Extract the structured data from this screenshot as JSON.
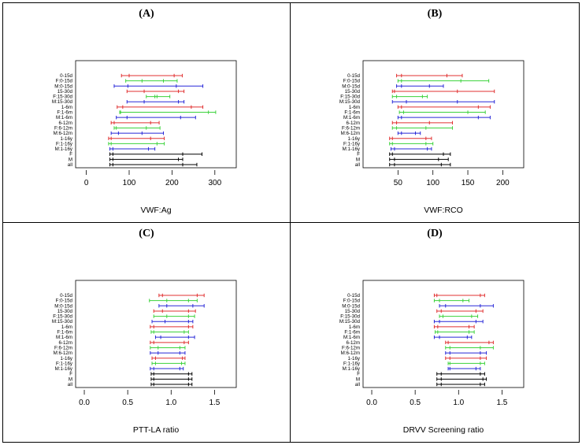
{
  "figure": {
    "panels": [
      {
        "label": "(A)"
      },
      {
        "label": "(B)"
      },
      {
        "label": "(C)"
      },
      {
        "label": "(D)"
      }
    ]
  },
  "chart_data": [
    {
      "type": "interval",
      "panel": "(A)",
      "xlabel": "VWF:Ag",
      "ylabel": "",
      "title": "",
      "xlim": [
        -25,
        350
      ],
      "xticks": [
        0,
        100,
        200,
        300
      ],
      "grid": false,
      "legend": "none",
      "colors": {
        "0-15d": "#e03030",
        "F": "#3cd23c",
        "M": "#2828d8",
        "all": "#000000"
      },
      "rows": [
        {
          "label": "0-15d",
          "group": "0-15d",
          "low": 82,
          "high": 224,
          "ticks": [
            100,
            205
          ]
        },
        {
          "label": "F:0-15d",
          "group": "F",
          "low": 92,
          "high": 212,
          "ticks": [
            130,
            180
          ]
        },
        {
          "label": "M:0-15d",
          "group": "M",
          "low": 65,
          "high": 272,
          "ticks": [
            97,
            210
          ]
        },
        {
          "label": "15-30d",
          "group": "0-15d",
          "low": 95,
          "high": 228,
          "ticks": [
            135,
            215
          ]
        },
        {
          "label": "F:15-30d",
          "group": "F",
          "low": 140,
          "high": 195,
          "ticks": [
            160,
            165
          ]
        },
        {
          "label": "M:15-30d",
          "group": "M",
          "low": 95,
          "high": 228,
          "ticks": [
            135,
            215
          ]
        },
        {
          "label": "1-6m",
          "group": "0-15d",
          "low": 72,
          "high": 272,
          "ticks": [
            85,
            245
          ]
        },
        {
          "label": "F:1-6m",
          "group": "F",
          "low": 78,
          "high": 302,
          "ticks": [
            80,
            285
          ]
        },
        {
          "label": "M:1-6m",
          "group": "M",
          "low": 70,
          "high": 255,
          "ticks": [
            95,
            220
          ]
        },
        {
          "label": "6-12m",
          "group": "0-15d",
          "low": 58,
          "high": 170,
          "ticks": [
            65,
            150
          ]
        },
        {
          "label": "F:6-12m",
          "group": "F",
          "low": 65,
          "high": 172,
          "ticks": [
            70,
            140
          ]
        },
        {
          "label": "M:6-12m",
          "group": "M",
          "low": 58,
          "high": 180,
          "ticks": [
            75,
            130
          ]
        },
        {
          "label": "1-16y",
          "group": "0-15d",
          "low": 52,
          "high": 182,
          "ticks": [
            58,
            150
          ]
        },
        {
          "label": "F:1-16y",
          "group": "F",
          "low": 52,
          "high": 182,
          "ticks": [
            58,
            165
          ]
        },
        {
          "label": "M:1-16y",
          "group": "M",
          "low": 55,
          "high": 160,
          "ticks": [
            62,
            145
          ]
        },
        {
          "label": "F",
          "group": "all",
          "low": 55,
          "high": 270,
          "ticks": [
            62,
            225
          ]
        },
        {
          "label": "M",
          "group": "all",
          "low": 55,
          "high": 225,
          "ticks": [
            62,
            215
          ]
        },
        {
          "label": "all",
          "group": "all",
          "low": 55,
          "high": 258,
          "ticks": [
            62,
            225
          ]
        }
      ]
    },
    {
      "type": "interval",
      "panel": "(B)",
      "xlabel": "VWF:RCO",
      "ylabel": "",
      "title": "",
      "xlim": [
        0,
        230
      ],
      "xticks": [
        50,
        100,
        150,
        200
      ],
      "grid": false,
      "legend": "none",
      "colors": {
        "0-15d": "#e03030",
        "F": "#3cd23c",
        "M": "#2828d8",
        "all": "#000000"
      },
      "rows": [
        {
          "label": "0-15d",
          "group": "0-15d",
          "low": 48,
          "high": 142,
          "ticks": [
            55,
            120
          ]
        },
        {
          "label": "F:0-15d",
          "group": "F",
          "low": 50,
          "high": 180,
          "ticks": [
            55,
            140
          ]
        },
        {
          "label": "M:0-15d",
          "group": "M",
          "low": 48,
          "high": 115,
          "ticks": [
            55,
            95
          ]
        },
        {
          "label": "15-30d",
          "group": "0-15d",
          "low": 42,
          "high": 188,
          "ticks": [
            45,
            135
          ]
        },
        {
          "label": "F:15-30d",
          "group": "F",
          "low": 42,
          "high": 92,
          "ticks": [
            48,
            85
          ]
        },
        {
          "label": "M:15-30d",
          "group": "M",
          "low": 42,
          "high": 188,
          "ticks": [
            62,
            135
          ]
        },
        {
          "label": "1-6m",
          "group": "0-15d",
          "low": 50,
          "high": 182,
          "ticks": [
            55,
            165
          ]
        },
        {
          "label": "F:1-6m",
          "group": "F",
          "low": 52,
          "high": 175,
          "ticks": [
            58,
            150
          ]
        },
        {
          "label": "M:1-6m",
          "group": "M",
          "low": 50,
          "high": 182,
          "ticks": [
            55,
            165
          ]
        },
        {
          "label": "6-12m",
          "group": "0-15d",
          "low": 42,
          "high": 128,
          "ticks": [
            48,
            95
          ]
        },
        {
          "label": "F:6-12m",
          "group": "F",
          "low": 42,
          "high": 128,
          "ticks": [
            48,
            90
          ]
        },
        {
          "label": "M:6-12m",
          "group": "M",
          "low": 50,
          "high": 82,
          "ticks": [
            55,
            75
          ]
        },
        {
          "label": "1-16y",
          "group": "0-15d",
          "low": 38,
          "high": 98,
          "ticks": [
            42,
            90
          ]
        },
        {
          "label": "F:1-16y",
          "group": "F",
          "low": 38,
          "high": 100,
          "ticks": [
            42,
            90
          ]
        },
        {
          "label": "M:1-16y",
          "group": "M",
          "low": 40,
          "high": 98,
          "ticks": [
            45,
            92
          ]
        },
        {
          "label": "F",
          "group": "all",
          "low": 38,
          "high": 125,
          "ticks": [
            42,
            115
          ]
        },
        {
          "label": "M",
          "group": "all",
          "low": 38,
          "high": 122,
          "ticks": [
            45,
            108
          ]
        },
        {
          "label": "all",
          "group": "all",
          "low": 38,
          "high": 125,
          "ticks": [
            45,
            112
          ]
        }
      ]
    },
    {
      "type": "interval",
      "panel": "(C)",
      "xlabel": "PTT-LA ratio",
      "ylabel": "",
      "title": "",
      "xlim": [
        -0.1,
        1.75
      ],
      "xticks": [
        "0.0",
        "0.5",
        "1.0",
        "1.5"
      ],
      "xtick_values": [
        0,
        0.5,
        1,
        1.5
      ],
      "grid": false,
      "legend": "none",
      "colors": {
        "0-15d": "#e03030",
        "F": "#3cd23c",
        "M": "#2828d8",
        "all": "#000000"
      },
      "rows": [
        {
          "label": "0-15d",
          "group": "0-15d",
          "low": 0.86,
          "high": 1.38,
          "ticks": [
            0.9,
            1.3
          ]
        },
        {
          "label": "F:0-15d",
          "group": "F",
          "low": 0.75,
          "high": 1.3,
          "ticks": [
            0.95,
            1.2
          ]
        },
        {
          "label": "M:0-15d",
          "group": "M",
          "low": 0.86,
          "high": 1.38,
          "ticks": [
            0.95,
            1.25
          ]
        },
        {
          "label": "15-30d",
          "group": "0-15d",
          "low": 0.8,
          "high": 1.28,
          "ticks": [
            0.9,
            1.2
          ]
        },
        {
          "label": "F:15-30d",
          "group": "F",
          "low": 0.8,
          "high": 1.27,
          "ticks": [
            0.95,
            1.2
          ]
        },
        {
          "label": "M:15-30d",
          "group": "M",
          "low": 0.78,
          "high": 1.25,
          "ticks": [
            0.93,
            1.2
          ]
        },
        {
          "label": "1-6m",
          "group": "0-15d",
          "low": 0.76,
          "high": 1.25,
          "ticks": [
            0.8,
            1.2
          ]
        },
        {
          "label": "F:1-6m",
          "group": "F",
          "low": 0.77,
          "high": 1.2,
          "ticks": [
            0.8,
            1.15
          ]
        },
        {
          "label": "M:1-6m",
          "group": "M",
          "low": 0.82,
          "high": 1.27,
          "ticks": [
            0.88,
            1.2
          ]
        },
        {
          "label": "6-12m",
          "group": "0-15d",
          "low": 0.76,
          "high": 1.2,
          "ticks": [
            0.8,
            1.15
          ]
        },
        {
          "label": "F:6-12m",
          "group": "F",
          "low": 0.76,
          "high": 1.16,
          "ticks": [
            0.85,
            1.1
          ]
        },
        {
          "label": "M:6-12m",
          "group": "M",
          "low": 0.76,
          "high": 1.16,
          "ticks": [
            0.85,
            1.1
          ]
        },
        {
          "label": "1-16y",
          "group": "0-15d",
          "low": 0.78,
          "high": 1.16,
          "ticks": [
            0.82,
            1.13
          ]
        },
        {
          "label": "F:1-16y",
          "group": "F",
          "low": 0.78,
          "high": 1.16,
          "ticks": [
            0.82,
            1.12
          ]
        },
        {
          "label": "M:1-16y",
          "group": "M",
          "low": 0.76,
          "high": 1.14,
          "ticks": [
            0.8,
            1.1
          ]
        },
        {
          "label": "F",
          "group": "all",
          "low": 0.77,
          "high": 1.24,
          "ticks": [
            0.8,
            1.2
          ]
        },
        {
          "label": "M",
          "group": "all",
          "low": 0.77,
          "high": 1.24,
          "ticks": [
            0.8,
            1.2
          ]
        },
        {
          "label": "all",
          "group": "all",
          "low": 0.77,
          "high": 1.24,
          "ticks": [
            0.8,
            1.2
          ]
        }
      ]
    },
    {
      "type": "interval",
      "panel": "(D)",
      "xlabel": "DRVV Screening ratio",
      "ylabel": "",
      "title": "",
      "xlim": [
        -0.1,
        1.75
      ],
      "xticks": [
        "0.0",
        "0.5",
        "1.0",
        "1.5"
      ],
      "xtick_values": [
        0,
        0.5,
        1,
        1.5
      ],
      "grid": false,
      "legend": "none",
      "colors": {
        "0-15d": "#e03030",
        "F": "#3cd23c",
        "M": "#2828d8",
        "all": "#000000"
      },
      "rows": [
        {
          "label": "0-15d",
          "group": "0-15d",
          "low": 0.72,
          "high": 1.3,
          "ticks": [
            0.75,
            1.25
          ]
        },
        {
          "label": "F:0-15d",
          "group": "F",
          "low": 0.72,
          "high": 1.12,
          "ticks": [
            0.78,
            1.05
          ]
        },
        {
          "label": "M:0-15d",
          "group": "M",
          "low": 0.78,
          "high": 1.4,
          "ticks": [
            0.85,
            1.25
          ]
        },
        {
          "label": "15-30d",
          "group": "0-15d",
          "low": 0.75,
          "high": 1.28,
          "ticks": [
            0.8,
            1.2
          ]
        },
        {
          "label": "F:15-30d",
          "group": "F",
          "low": 0.78,
          "high": 1.22,
          "ticks": [
            0.82,
            1.15
          ]
        },
        {
          "label": "M:15-30d",
          "group": "M",
          "low": 0.72,
          "high": 1.28,
          "ticks": [
            0.78,
            1.2
          ]
        },
        {
          "label": "1-6m",
          "group": "0-15d",
          "low": 0.72,
          "high": 1.18,
          "ticks": [
            0.76,
            1.12
          ]
        },
        {
          "label": "F:1-6m",
          "group": "F",
          "low": 0.73,
          "high": 1.18,
          "ticks": [
            0.76,
            1.12
          ]
        },
        {
          "label": "M:1-6m",
          "group": "M",
          "low": 0.72,
          "high": 1.15,
          "ticks": [
            0.78,
            1.1
          ]
        },
        {
          "label": "6-12m",
          "group": "0-15d",
          "low": 0.85,
          "high": 1.4,
          "ticks": [
            0.88,
            1.35
          ]
        },
        {
          "label": "F:6-12m",
          "group": "F",
          "low": 0.85,
          "high": 1.4,
          "ticks": [
            0.9,
            1.25
          ]
        },
        {
          "label": "M:6-12m",
          "group": "M",
          "low": 0.85,
          "high": 1.32,
          "ticks": [
            0.9,
            1.25
          ]
        },
        {
          "label": "1-16y",
          "group": "0-15d",
          "low": 0.85,
          "high": 1.32,
          "ticks": [
            0.9,
            1.25
          ]
        },
        {
          "label": "F:1-16y",
          "group": "F",
          "low": 0.88,
          "high": 1.3,
          "ticks": [
            0.9,
            1.25
          ]
        },
        {
          "label": "M:1-16y",
          "group": "M",
          "low": 0.88,
          "high": 1.25,
          "ticks": [
            0.9,
            1.2
          ]
        },
        {
          "label": "F",
          "group": "all",
          "low": 0.75,
          "high": 1.3,
          "ticks": [
            0.8,
            1.25
          ]
        },
        {
          "label": "M",
          "group": "all",
          "low": 0.75,
          "high": 1.32,
          "ticks": [
            0.8,
            1.28
          ]
        },
        {
          "label": "all",
          "group": "all",
          "low": 0.75,
          "high": 1.3,
          "ticks": [
            0.8,
            1.25
          ]
        }
      ]
    }
  ]
}
